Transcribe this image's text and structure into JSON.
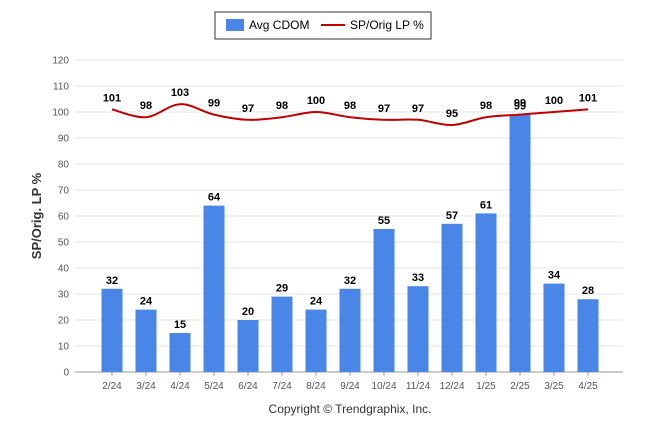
{
  "chart_data": {
    "type": "bar",
    "categories": [
      "2/24",
      "3/24",
      "4/24",
      "5/24",
      "6/24",
      "7/24",
      "8/24",
      "9/24",
      "10/24",
      "11/24",
      "12/24",
      "1/25",
      "2/25",
      "3/25",
      "4/25"
    ],
    "series": [
      {
        "name": "Avg CDOM",
        "type": "bar",
        "color": "#4a86e8",
        "values": [
          32,
          24,
          15,
          64,
          20,
          29,
          24,
          32,
          55,
          33,
          57,
          61,
          99,
          34,
          28
        ]
      },
      {
        "name": "SP/Orig LP %",
        "type": "line",
        "color": "#c00000",
        "values": [
          101,
          98,
          103,
          99,
          97,
          98,
          100,
          98,
          97,
          97,
          95,
          98,
          99,
          100,
          101
        ]
      }
    ],
    "ylabel": "SP/Orig. LP %",
    "xlabel": "",
    "ylim": [
      0,
      120
    ],
    "yticks": [
      0,
      10,
      20,
      30,
      40,
      50,
      60,
      70,
      80,
      90,
      100,
      110,
      120
    ],
    "grid": true,
    "legend_position": "top-center",
    "credit": "Copyright © Trendgraphix, Inc."
  }
}
